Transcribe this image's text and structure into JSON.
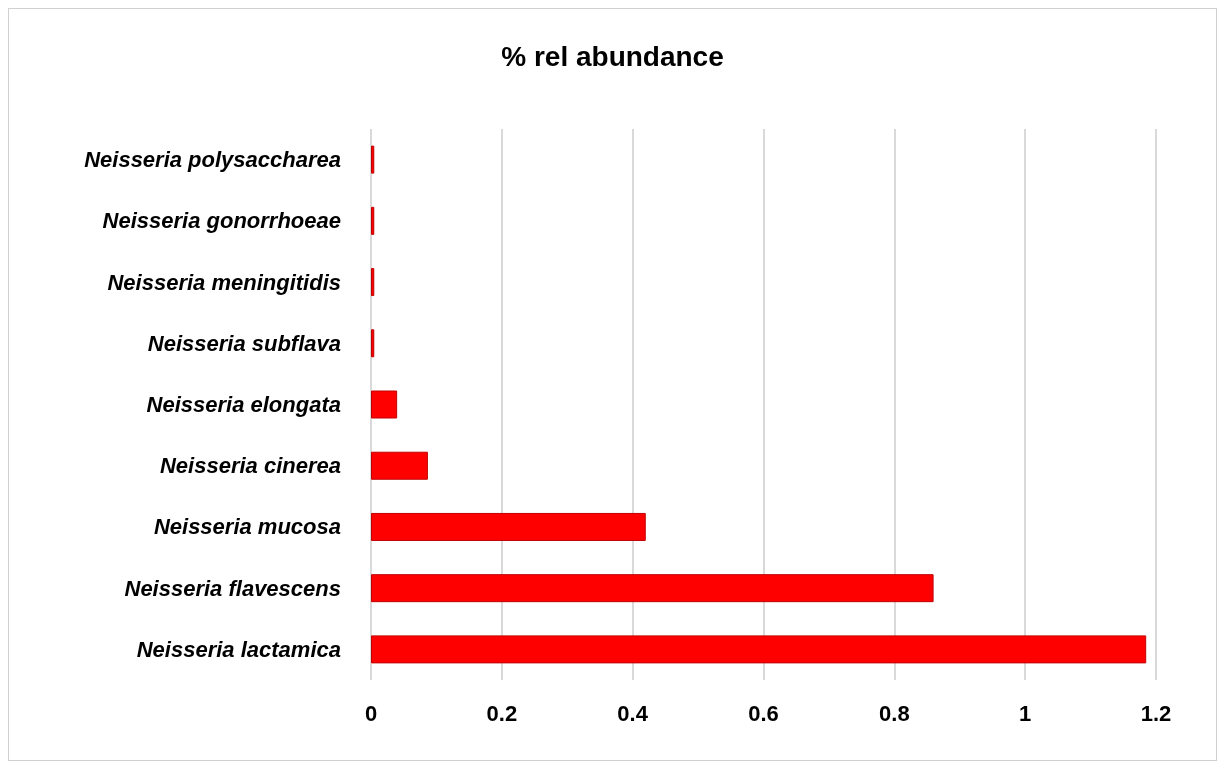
{
  "chart_data": {
    "type": "bar",
    "orientation": "horizontal",
    "title": "% rel abundance",
    "categories": [
      "Neisseria polysaccharea",
      "Neisseria gonorrhoeae",
      "Neisseria meningitidis",
      "Neisseria subflava",
      "Neisseria elongata",
      "Neisseria cinerea",
      "Neisseria mucosa",
      "Neisseria flavescens",
      "Neisseria lactamica"
    ],
    "values": [
      0.005,
      0.005,
      0.005,
      0.005,
      0.04,
      0.087,
      0.42,
      0.86,
      1.185
    ],
    "color": "#ff0000",
    "xlim": [
      0,
      1.2
    ],
    "xticks": [
      0,
      0.2,
      0.4,
      0.6,
      0.8,
      1,
      1.2
    ],
    "grid": "x"
  }
}
